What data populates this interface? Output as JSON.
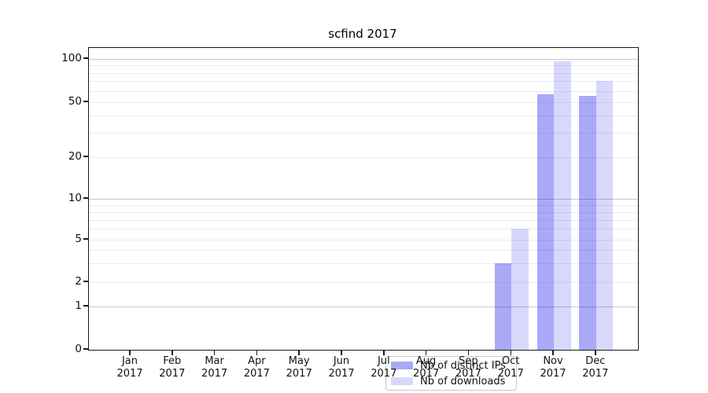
{
  "chart_data": {
    "type": "bar",
    "title": "scfind 2017",
    "categories": [
      "Jan",
      "Feb",
      "Mar",
      "Apr",
      "May",
      "Jun",
      "Jul",
      "Aug",
      "Sep",
      "Oct",
      "Nov",
      "Dec"
    ],
    "year": "2017",
    "series": [
      {
        "name": "Nb of distinct IPs",
        "color": "rgba(10,10,233,0.35)",
        "color_hex": "#a9a9f7",
        "values": [
          0,
          0,
          0,
          0,
          0,
          0,
          0,
          0,
          0,
          3,
          57,
          55
        ]
      },
      {
        "name": "Nb of downloads",
        "color": "rgba(10,10,233,0.16)",
        "color_hex": "#d8d8fb",
        "values": [
          0,
          0,
          0,
          0,
          0,
          0,
          0,
          0,
          0,
          6,
          96,
          70
        ]
      }
    ],
    "yscale": "symlog",
    "ylim": [
      0,
      110
    ],
    "ytick_values": [
      0,
      1,
      2,
      5,
      10,
      20,
      50,
      100
    ],
    "ytick_labels": [
      "0",
      "1",
      "2",
      "5",
      "10",
      "20",
      "50",
      "100"
    ],
    "y_major_grid_values": [
      1,
      10,
      100
    ],
    "y_minor_grid_values": [
      3,
      4,
      6,
      7,
      8,
      9,
      30,
      40,
      60,
      70,
      80,
      90
    ],
    "grid": "horizontal major + minor",
    "legend_position": "lower center inside plot",
    "colors": {
      "major_grid": "#c8c8c8",
      "minor_grid": "#ececec",
      "spine": "#1a1a1a"
    }
  }
}
